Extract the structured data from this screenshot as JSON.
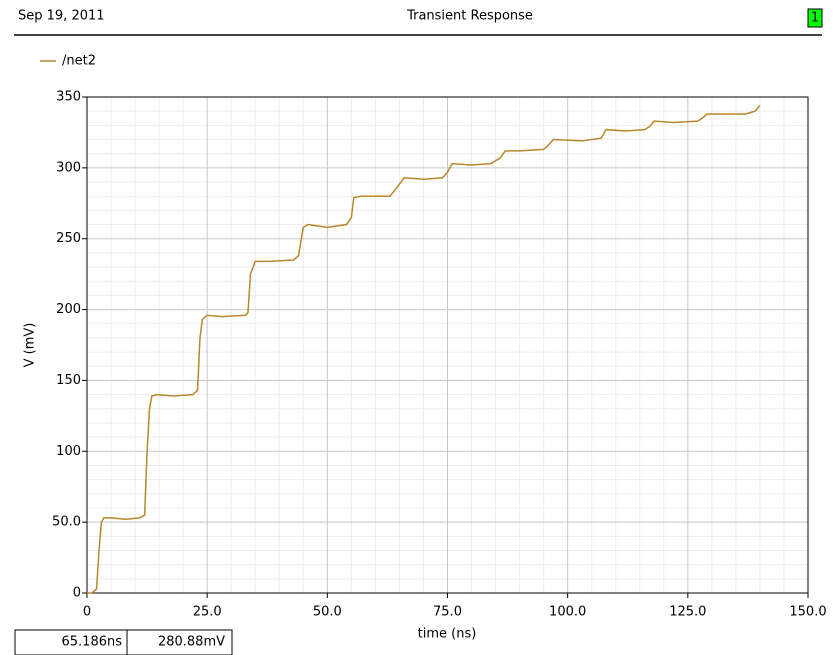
{
  "chart_data": {
    "type": "line",
    "date": "Sep 19, 2011",
    "title": "Transient Response",
    "badge": "1",
    "xlabel": "time (ns)",
    "ylabel": "V (mV)",
    "readouts": [
      "65.186ns",
      "280.88mV"
    ],
    "xlim": [
      0,
      150
    ],
    "ylim": [
      0,
      350
    ],
    "xticks": [
      0,
      {
        "value": 25,
        "label": "25.0"
      },
      {
        "value": 50,
        "label": "50.0"
      },
      {
        "value": 75,
        "label": "75.0"
      },
      {
        "value": 100,
        "label": "100.0"
      },
      {
        "value": 125,
        "label": "125.0"
      },
      {
        "value": 150,
        "label": "150.0"
      }
    ],
    "yticks": [
      0,
      {
        "value": 50,
        "label": "50.0"
      },
      100,
      150,
      200,
      250,
      300,
      350
    ],
    "xminorticks": [
      5,
      10,
      15,
      20,
      30,
      35,
      40,
      45,
      55,
      60,
      65,
      70,
      80,
      85,
      90,
      95,
      105,
      110,
      115,
      120,
      130,
      135,
      140,
      145
    ],
    "yminorticks": [
      10,
      20,
      30,
      40,
      60,
      70,
      80,
      90,
      110,
      120,
      130,
      140,
      160,
      170,
      180,
      190,
      210,
      220,
      230,
      240,
      260,
      270,
      280,
      290,
      310,
      320,
      330,
      340
    ],
    "grid": true,
    "legend": "top-left",
    "x": [
      0,
      1,
      2,
      2.5,
      3,
      3.5,
      5,
      8,
      11,
      12,
      12.5,
      13,
      13.5,
      14.5,
      18,
      22,
      23,
      23.5,
      24,
      25,
      28,
      33,
      33.5,
      34,
      35,
      38,
      43,
      44,
      45,
      46,
      50,
      54,
      55,
      55.5,
      57,
      63,
      64,
      66,
      70,
      74,
      75,
      76,
      80,
      84,
      86,
      87,
      90,
      95,
      96,
      97,
      103,
      107,
      108,
      112,
      116,
      117,
      118,
      122,
      127,
      128,
      129,
      133,
      137,
      139,
      140
    ],
    "series": [
      {
        "name": "/net2",
        "color": "#b8862b",
        "values": [
          0,
          0,
          3,
          30,
          50,
          53,
          53,
          52,
          53,
          55,
          100,
          130,
          139,
          140,
          139,
          140,
          143,
          180,
          193,
          196,
          195,
          196,
          198,
          225,
          234,
          234,
          235,
          238,
          258,
          260,
          258,
          260,
          265,
          279,
          280,
          280,
          284,
          293,
          292,
          293,
          297,
          303,
          302,
          303,
          307,
          312,
          312,
          313,
          316,
          320,
          319,
          321,
          327,
          326,
          327,
          329,
          333,
          332,
          333,
          335,
          338,
          338,
          338,
          340,
          344
        ]
      }
    ]
  }
}
